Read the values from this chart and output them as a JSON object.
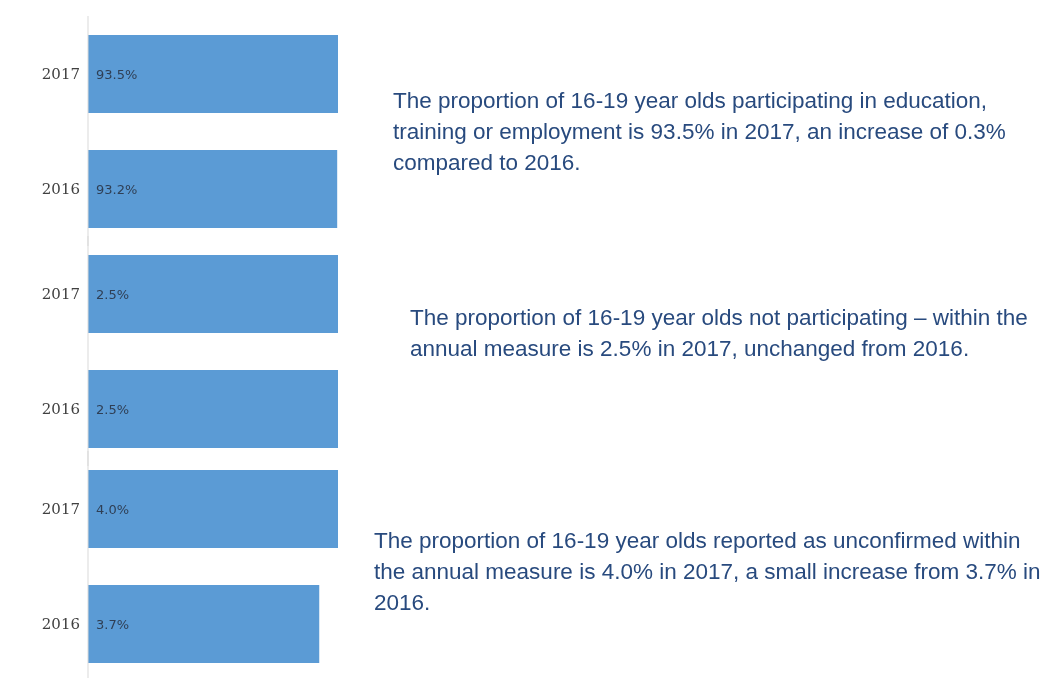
{
  "chart_data": [
    {
      "type": "bar",
      "orientation": "horizontal",
      "categories": [
        "2017",
        "2016"
      ],
      "values": [
        93.5,
        93.2
      ],
      "value_labels": [
        "93.5%",
        "93.2%"
      ],
      "color": "#5b9bd5",
      "tick_labels": "y",
      "grid": false,
      "legend": false,
      "annotations": [
        "The proportion of 16-19 year olds participating in education, training or employment is 93.5% in 2017, an increase of 0.3% compared to 2016."
      ]
    },
    {
      "type": "bar",
      "orientation": "horizontal",
      "categories": [
        "2017",
        "2016"
      ],
      "values": [
        2.5,
        2.5
      ],
      "value_labels": [
        "2.5%",
        "2.5%"
      ],
      "color": "#5b9bd5",
      "tick_labels": "y",
      "grid": false,
      "legend": false,
      "annotations": [
        "The proportion of 16-19 year olds not participating – within the annual measure is 2.5% in 2017, unchanged from 2016."
      ]
    },
    {
      "type": "bar",
      "orientation": "horizontal",
      "categories": [
        "2017",
        "2016"
      ],
      "values": [
        4.0,
        3.7
      ],
      "value_labels": [
        "4.0%",
        "3.7%"
      ],
      "color": "#5b9bd5",
      "tick_labels": "y",
      "grid": false,
      "legend": false,
      "annotations": [
        "The proportion of 16-19 year olds reported as unconfirmed within the annual measure is 4.0% in 2017, a small increase from 3.7% in 2016."
      ]
    }
  ]
}
